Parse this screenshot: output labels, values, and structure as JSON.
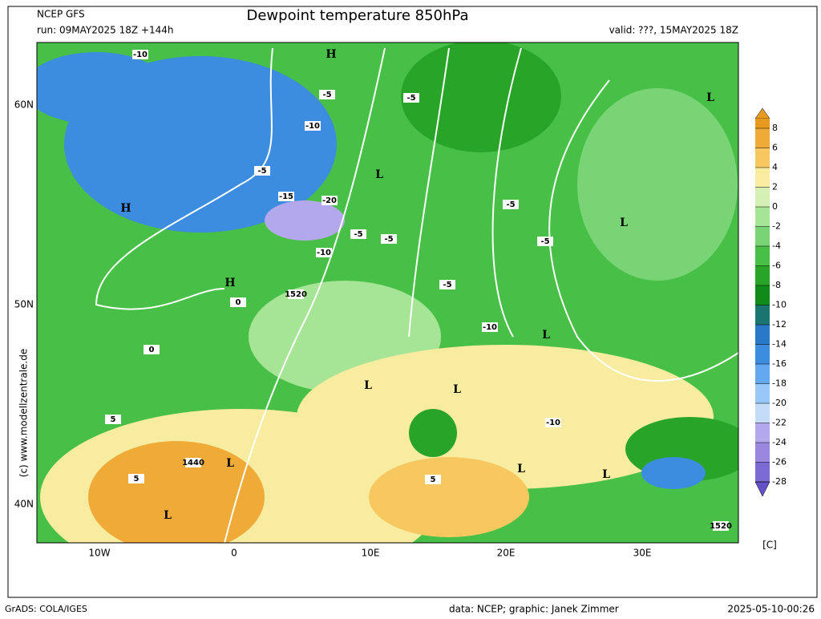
{
  "header": {
    "model": "NCEP GFS",
    "run": "run: 09MAY2025 18Z +144h",
    "title": "Dewpoint temperature 850hPa",
    "valid": "valid: ???, 15MAY2025 18Z"
  },
  "map": {
    "lon_labels": [
      "10W",
      "0",
      "10E",
      "20E",
      "30E"
    ],
    "lat_labels": [
      "60N",
      "50N",
      "40N"
    ],
    "labels": [
      "H",
      "H",
      "H",
      "L",
      "L",
      "L",
      "L",
      "L",
      "L",
      "L",
      "L",
      "L",
      "L",
      "1520",
      "1520",
      "1440",
      "-10",
      "-10",
      "-10",
      "-15",
      "-20",
      "-10",
      "-5",
      "-5",
      "-5",
      "-5",
      "-5",
      "-5",
      "-5",
      "-5",
      "-10",
      "0",
      "0",
      "5",
      "5",
      "5"
    ]
  },
  "colorbar": {
    "levels": [
      8,
      6,
      4,
      2,
      0,
      -2,
      -4,
      -6,
      -8,
      -10,
      -12,
      -14,
      -16,
      -18,
      -20,
      -22,
      -24,
      -26,
      -28
    ],
    "colors": [
      "#e89a20",
      "#f0aa38",
      "#f8c860",
      "#f8eca0",
      "#d4f0b4",
      "#a6e496",
      "#78d474",
      "#48c048",
      "#28a428",
      "#108a18",
      "#1a7470",
      "#2a78c8",
      "#3c8ce0",
      "#64a8f0",
      "#98c8f8",
      "#c4dcf8",
      "#b4a8ec",
      "#9a88e0",
      "#7c6ad4",
      "#6450c8"
    ],
    "unit": "[C]"
  },
  "side": "(c) www.modellzentrale.de",
  "footer": {
    "left": "GrADS: COLA/IGES",
    "center": "data: NCEP; graphic: Janek Zimmer",
    "right": "2025-05-10-00:26"
  }
}
